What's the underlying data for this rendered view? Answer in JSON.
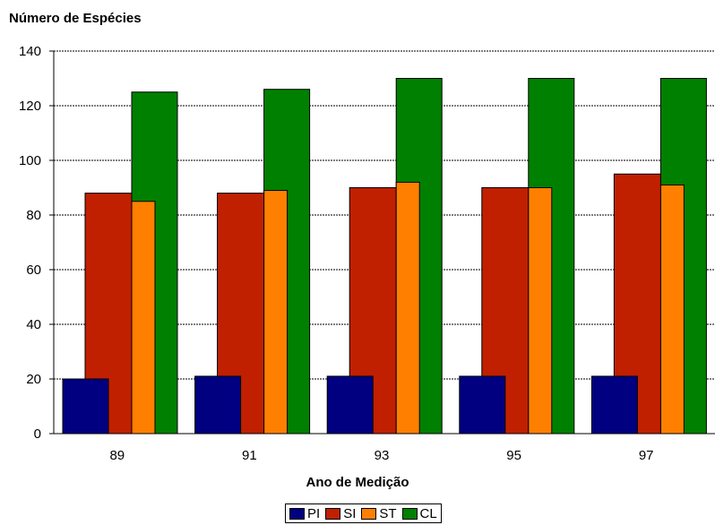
{
  "chart_data": {
    "type": "bar",
    "title": "",
    "ylabel": "Número de Espécies",
    "xlabel": "Ano de Medição",
    "categories": [
      "89",
      "91",
      "93",
      "95",
      "97"
    ],
    "ylim": [
      0,
      140
    ],
    "yticks": [
      0,
      20,
      40,
      60,
      80,
      100,
      120,
      140
    ],
    "grid": true,
    "legend_position": "bottom",
    "series": [
      {
        "name": "PI",
        "color": "#000080",
        "values": [
          20,
          21,
          21,
          21,
          21
        ]
      },
      {
        "name": "SI",
        "color": "#C02000",
        "values": [
          88,
          88,
          90,
          90,
          95
        ]
      },
      {
        "name": "ST",
        "color": "#FF8000",
        "values": [
          85,
          89,
          92,
          90,
          91
        ]
      },
      {
        "name": "CL",
        "color": "#008000",
        "values": [
          125,
          126,
          130,
          130,
          130
        ]
      }
    ]
  }
}
